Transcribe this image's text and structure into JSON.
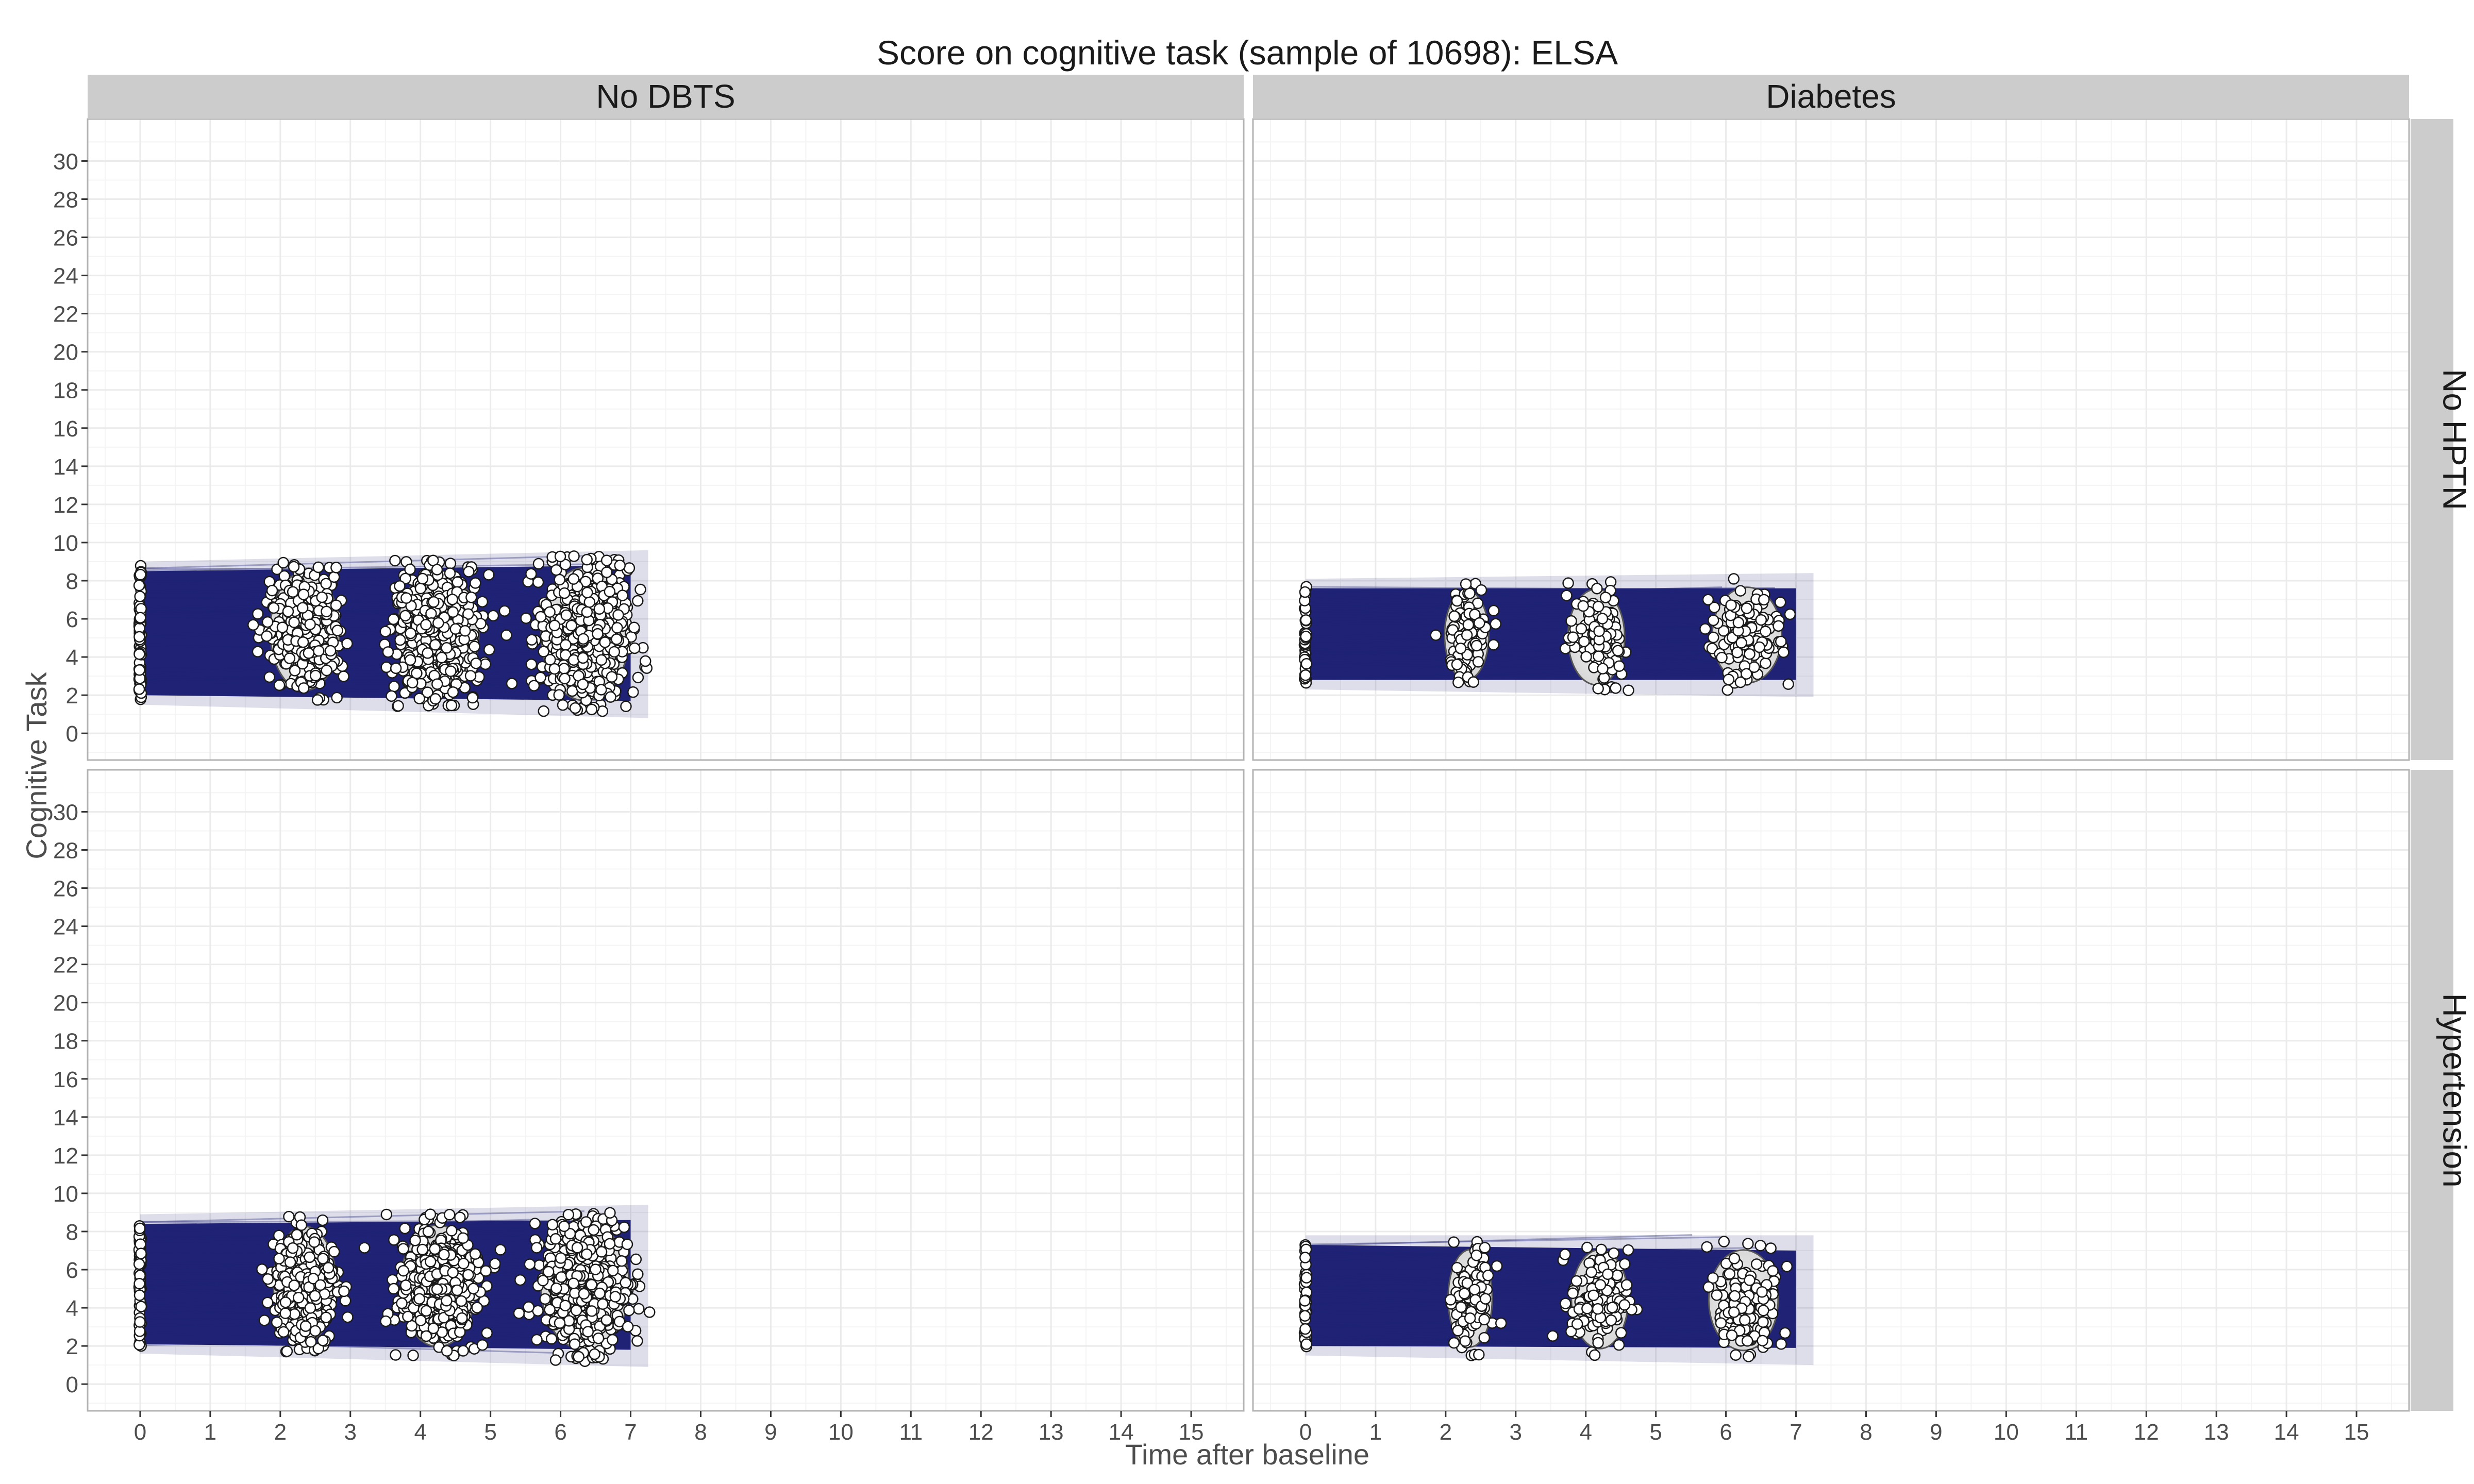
{
  "chart_data": {
    "type": "scatter",
    "title": "Score on cognitive task (sample of 10698): ELSA",
    "xlabel": "Time after baseline",
    "ylabel": "Cognitive Task",
    "xlim": [
      -0.75,
      15.75
    ],
    "ylim": [
      -1.4,
      32.2
    ],
    "x_ticks": [
      0,
      1,
      2,
      3,
      4,
      5,
      6,
      7,
      8,
      9,
      10,
      11,
      12,
      13,
      14,
      15
    ],
    "y_ticks": [
      0,
      2,
      4,
      6,
      8,
      10,
      12,
      14,
      16,
      18,
      20,
      22,
      24,
      26,
      28,
      30
    ],
    "grid": true,
    "col_facets": [
      "No DBTS",
      "Diabetes"
    ],
    "row_facets": [
      "No HPTN",
      "Hypertension"
    ],
    "colors": {
      "trajectory": "#1f2275",
      "point_fill": "#ffffff",
      "point_stroke": "#1a1a1a",
      "panel_bg": "#ffffff",
      "grid": "#ebebeb",
      "strip_bg": "#cccccc",
      "panel_border": "#b3b3b3"
    },
    "panels": [
      {
        "col": "No DBTS",
        "row": "No HPTN",
        "band": {
          "x_start": 0,
          "x_end": 7.0,
          "y_low_start": 1.8,
          "y_low_end": 1.1,
          "y_high_start": 8.7,
          "y_high_end": 9.3
        },
        "clusters": [
          {
            "x_center": 0.0,
            "x_spread": 0.03,
            "y_min": 1.7,
            "y_max": 8.8,
            "count": 70
          },
          {
            "x_center": 2.35,
            "x_spread": 0.55,
            "y_min": 1.7,
            "y_max": 9.0,
            "count": 420
          },
          {
            "x_center": 4.25,
            "x_spread": 0.65,
            "y_min": 1.4,
            "y_max": 9.1,
            "count": 560
          },
          {
            "x_center": 6.35,
            "x_spread": 0.7,
            "y_min": 1.1,
            "y_max": 9.3,
            "count": 640
          }
        ]
      },
      {
        "col": "Diabetes",
        "row": "No HPTN",
        "band": {
          "x_start": 0,
          "x_end": 7.0,
          "y_low_start": 2.6,
          "y_low_end": 2.2,
          "y_high_start": 7.8,
          "y_high_end": 8.1
        },
        "clusters": [
          {
            "x_center": 0.0,
            "x_spread": 0.03,
            "y_min": 2.6,
            "y_max": 7.8,
            "count": 45
          },
          {
            "x_center": 2.3,
            "x_spread": 0.35,
            "y_min": 2.4,
            "y_max": 7.9,
            "count": 90
          },
          {
            "x_center": 4.15,
            "x_spread": 0.45,
            "y_min": 2.1,
            "y_max": 8.0,
            "count": 120
          },
          {
            "x_center": 6.3,
            "x_spread": 0.55,
            "y_min": 2.2,
            "y_max": 8.1,
            "count": 130
          }
        ]
      },
      {
        "col": "No DBTS",
        "row": "Hypertension",
        "band": {
          "x_start": 0,
          "x_end": 7.0,
          "y_low_start": 1.9,
          "y_low_end": 1.2,
          "y_high_start": 8.6,
          "y_high_end": 9.1
        },
        "clusters": [
          {
            "x_center": 0.0,
            "x_spread": 0.03,
            "y_min": 1.9,
            "y_max": 8.6,
            "count": 65
          },
          {
            "x_center": 2.35,
            "x_spread": 0.5,
            "y_min": 1.7,
            "y_max": 8.8,
            "count": 380
          },
          {
            "x_center": 4.25,
            "x_spread": 0.6,
            "y_min": 1.4,
            "y_max": 8.9,
            "count": 500
          },
          {
            "x_center": 6.35,
            "x_spread": 0.7,
            "y_min": 1.2,
            "y_max": 9.1,
            "count": 580
          }
        ]
      },
      {
        "col": "Diabetes",
        "row": "Hypertension",
        "band": {
          "x_start": 0,
          "x_end": 7.0,
          "y_low_start": 1.8,
          "y_low_end": 1.3,
          "y_high_start": 7.5,
          "y_high_end": 7.5
        },
        "clusters": [
          {
            "x_center": 0.0,
            "x_spread": 0.03,
            "y_min": 1.8,
            "y_max": 7.5,
            "count": 45
          },
          {
            "x_center": 2.35,
            "x_spread": 0.35,
            "y_min": 1.5,
            "y_max": 7.5,
            "count": 110
          },
          {
            "x_center": 4.2,
            "x_spread": 0.45,
            "y_min": 1.4,
            "y_max": 7.5,
            "count": 130
          },
          {
            "x_center": 6.25,
            "x_spread": 0.55,
            "y_min": 1.3,
            "y_max": 7.5,
            "count": 140
          }
        ]
      }
    ]
  }
}
